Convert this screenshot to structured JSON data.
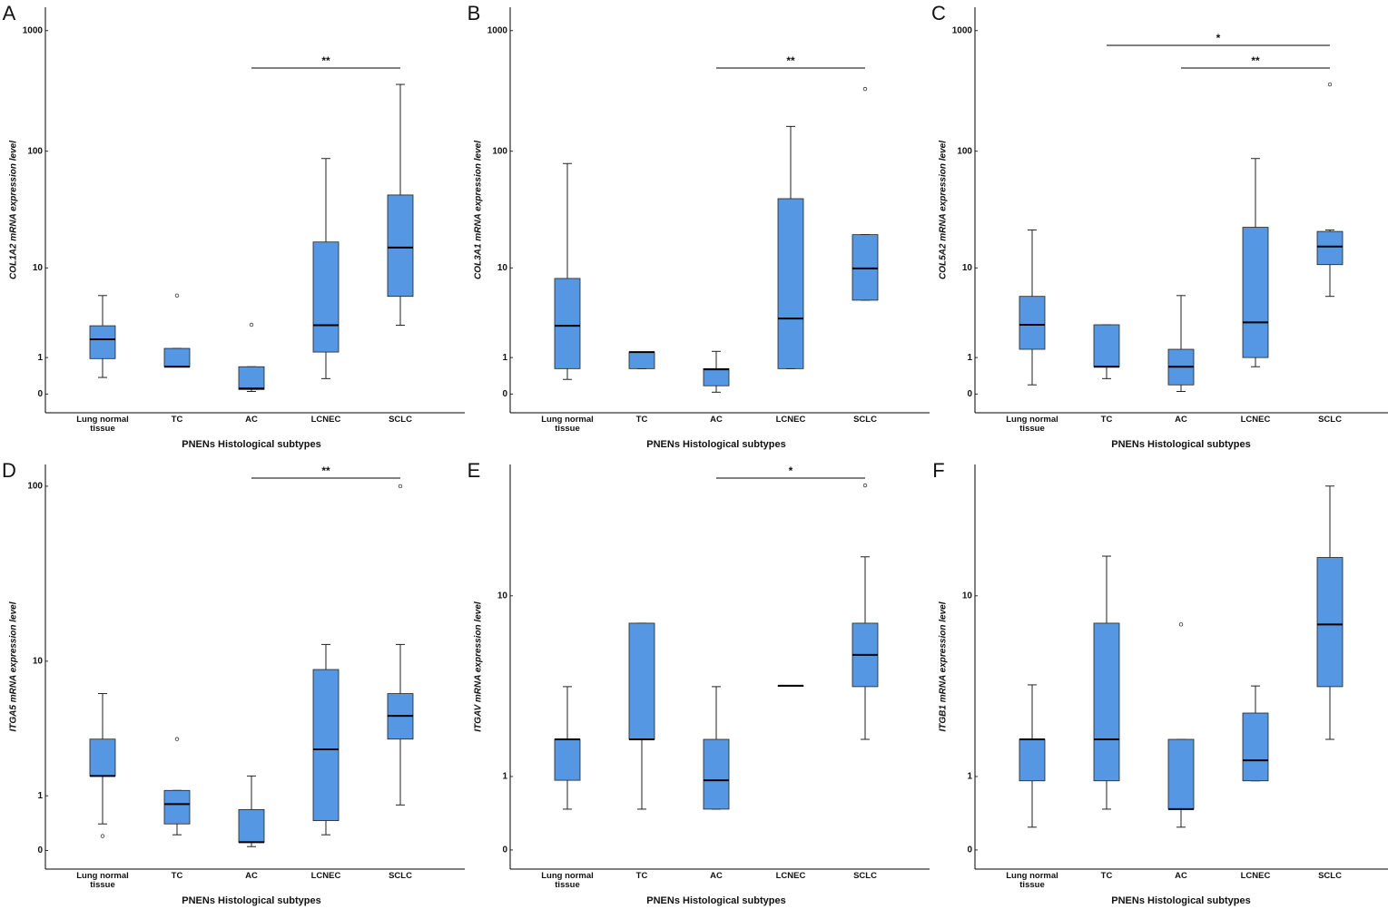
{
  "chart_data": [
    {
      "type": "box",
      "panel": "A",
      "ylabel": "COL1A2 mRNA expression level",
      "xlabel": "PNENs Histological subtypes",
      "categories": [
        "Lung normal tissue",
        "TC",
        "AC",
        "LCNEC",
        "SCLC"
      ],
      "color": "#5597e2",
      "yscale": "log1p",
      "ylim": [
        -0.3,
        1560
      ],
      "yticks": [
        0,
        1,
        10,
        100,
        1000
      ],
      "boxes": [
        {
          "whislo": 0.37,
          "q1": 0.96,
          "med": 1.83,
          "q3": 2.66,
          "whishi": 5.5,
          "fliers": []
        },
        {
          "whislo": 0.68,
          "q1": 0.68,
          "med": 0.68,
          "q3": 1.38,
          "whishi": 1.38,
          "fliers": [
            5.5
          ]
        },
        {
          "whislo": 0.05,
          "q1": 0.09,
          "med": 0.11,
          "q3": 0.68,
          "whishi": 0.68,
          "fliers": [
            2.73
          ]
        },
        {
          "whislo": 0.34,
          "q1": 1.22,
          "med": 2.7,
          "q3": 17,
          "whishi": 87,
          "fliers": []
        },
        {
          "whislo": 2.7,
          "q1": 5.4,
          "med": 15.2,
          "q3": 43,
          "whishi": 359,
          "fliers": []
        }
      ],
      "annotations": [
        {
          "from": "AC",
          "to": "SCLC",
          "text": "**"
        }
      ]
    },
    {
      "type": "box",
      "panel": "B",
      "ylabel": "COL3A1 mRNA expression level",
      "xlabel": "PNENs Histological subtypes",
      "categories": [
        "Lung normal tissue",
        "TC",
        "AC",
        "LCNEC",
        "SCLC"
      ],
      "color": "#5597e2",
      "yscale": "log1p",
      "ylim": [
        -0.3,
        1560
      ],
      "yticks": [
        0,
        1,
        10,
        100,
        1000
      ],
      "boxes": [
        {
          "whislo": 0.32,
          "q1": 0.62,
          "med": 2.66,
          "q3": 8.0,
          "whishi": 79,
          "fliers": []
        },
        {
          "whislo": 0.62,
          "q1": 0.62,
          "med": 1.22,
          "q3": 1.22,
          "whishi": 1.22,
          "fliers": []
        },
        {
          "whislo": 0.035,
          "q1": 0.17,
          "med": 0.6,
          "q3": 0.62,
          "whishi": 1.25,
          "fliers": []
        },
        {
          "whislo": 0.62,
          "q1": 0.62,
          "med": 3.2,
          "q3": 40,
          "whishi": 161,
          "fliers": []
        },
        {
          "whislo": 4.95,
          "q1": 4.95,
          "med": 9.9,
          "q3": 19.7,
          "whishi": 19.7,
          "fliers": [
            329
          ]
        }
      ],
      "annotations": [
        {
          "from": "AC",
          "to": "SCLC",
          "text": "**"
        }
      ]
    },
    {
      "type": "box",
      "panel": "C",
      "ylabel": "COL5A2 mRNA expression level",
      "xlabel": "PNENs Histological subtypes",
      "categories": [
        "Lung normal tissue",
        "TC",
        "AC",
        "LCNEC",
        "SCLC"
      ],
      "color": "#5597e2",
      "yscale": "log1p",
      "ylim": [
        -0.3,
        1560
      ],
      "yticks": [
        0,
        1,
        10,
        100,
        1000
      ],
      "boxes": [
        {
          "whislo": 0.19,
          "q1": 1.34,
          "med": 2.73,
          "q3": 5.4,
          "whishi": 21.6,
          "fliers": []
        },
        {
          "whislo": 0.34,
          "q1": 0.68,
          "med": 0.68,
          "q3": 2.73,
          "whishi": 2.73,
          "fliers": []
        },
        {
          "whislo": 0.05,
          "q1": 0.19,
          "med": 0.68,
          "q3": 1.34,
          "whishi": 5.5,
          "fliers": []
        },
        {
          "whislo": 0.68,
          "q1": 1.0,
          "med": 2.9,
          "q3": 22.8,
          "whishi": 87,
          "fliers": []
        },
        {
          "whislo": 5.4,
          "q1": 10.7,
          "med": 15.5,
          "q3": 21,
          "whishi": 21.6,
          "fliers": [
            359
          ]
        }
      ],
      "annotations": [
        {
          "from": "TC",
          "to": "SCLC",
          "text": "*"
        },
        {
          "from": "AC",
          "to": "SCLC",
          "text": "**"
        }
      ]
    },
    {
      "type": "box",
      "panel": "D",
      "ylabel": "ITGA5 mRNA expression level",
      "xlabel": "PNENs Histological subtypes",
      "categories": [
        "Lung normal tissue",
        "TC",
        "AC",
        "LCNEC",
        "SCLC"
      ],
      "color": "#5597e2",
      "yscale": "log1p",
      "ylim": [
        -0.21,
        132
      ],
      "yticks": [
        0,
        1,
        10,
        100
      ],
      "boxes": [
        {
          "whislo": 0.4,
          "q1": 1.57,
          "med": 1.57,
          "q3": 3.1,
          "whishi": 6.3,
          "fliers": [
            0.2
          ]
        },
        {
          "whislo": 0.22,
          "q1": 0.4,
          "med": 0.8,
          "q3": 1.14,
          "whishi": 1.14,
          "fliers": [
            3.1
          ]
        },
        {
          "whislo": 0.05,
          "q1": 0.11,
          "med": 0.11,
          "q3": 0.68,
          "whishi": 1.57,
          "fliers": []
        },
        {
          "whislo": 0.22,
          "q1": 0.46,
          "med": 2.6,
          "q3": 8.9,
          "whishi": 12.6,
          "fliers": []
        },
        {
          "whislo": 0.78,
          "q1": 3.1,
          "med": 4.5,
          "q3": 6.3,
          "whishi": 12.6,
          "fliers": [
            100
          ]
        }
      ],
      "annotations": [
        {
          "from": "AC",
          "to": "SCLC",
          "text": "**"
        }
      ]
    },
    {
      "type": "box",
      "panel": "E",
      "ylabel": "ITGAV mRNA expression level",
      "xlabel": "PNENs Histological subtypes",
      "categories": [
        "Lung normal tissue",
        "TC",
        "AC",
        "LCNEC",
        "SCLC"
      ],
      "color": "#5597e2",
      "yscale": "log1p",
      "ylim": [
        -0.165,
        37
      ],
      "yticks": [
        0,
        1,
        10
      ],
      "boxes": [
        {
          "whislo": 0.47,
          "q1": 0.93,
          "med": 1.84,
          "q3": 1.84,
          "whishi": 3.67,
          "fliers": []
        },
        {
          "whislo": 0.47,
          "q1": 1.84,
          "med": 1.84,
          "q3": 7.5,
          "whishi": 7.5,
          "fliers": []
        },
        {
          "whislo": 0.47,
          "q1": 0.47,
          "med": 0.93,
          "q3": 1.84,
          "whishi": 3.67,
          "fliers": []
        },
        {
          "whislo": 3.71,
          "q1": 3.71,
          "med": 3.71,
          "q3": 3.71,
          "whishi": 3.71,
          "fliers": []
        },
        {
          "whislo": 1.84,
          "q1": 3.67,
          "med": 5.3,
          "q3": 7.5,
          "whishi": 14.9,
          "fliers": [
            30.2
          ]
        }
      ],
      "annotations": [
        {
          "from": "AC",
          "to": "SCLC",
          "text": "*"
        }
      ]
    },
    {
      "type": "box",
      "panel": "F",
      "ylabel": "ITGB1 mRNA expression level",
      "xlabel": "PNENs Histological subtypes",
      "categories": [
        "Lung normal tissue",
        "TC",
        "AC",
        "LCNEC",
        "SCLC"
      ],
      "color": "#5597e2",
      "yscale": "log1p",
      "ylim": [
        -0.165,
        37
      ],
      "yticks": [
        0,
        1,
        10
      ],
      "boxes": [
        {
          "whislo": 0.24,
          "q1": 0.92,
          "med": 1.84,
          "q3": 1.84,
          "whishi": 3.75,
          "fliers": []
        },
        {
          "whislo": 0.47,
          "q1": 0.92,
          "med": 1.84,
          "q3": 7.5,
          "whishi": 15,
          "fliers": []
        },
        {
          "whislo": 0.24,
          "q1": 0.47,
          "med": 0.47,
          "q3": 1.84,
          "whishi": 1.84,
          "fliers": [
            7.4
          ]
        },
        {
          "whislo": 0.92,
          "q1": 0.92,
          "med": 1.33,
          "q3": 2.64,
          "whishi": 3.7,
          "fliers": []
        },
        {
          "whislo": 1.84,
          "q1": 3.67,
          "med": 7.4,
          "q3": 14.8,
          "whishi": 30,
          "fliers": []
        }
      ],
      "annotations": []
    }
  ]
}
